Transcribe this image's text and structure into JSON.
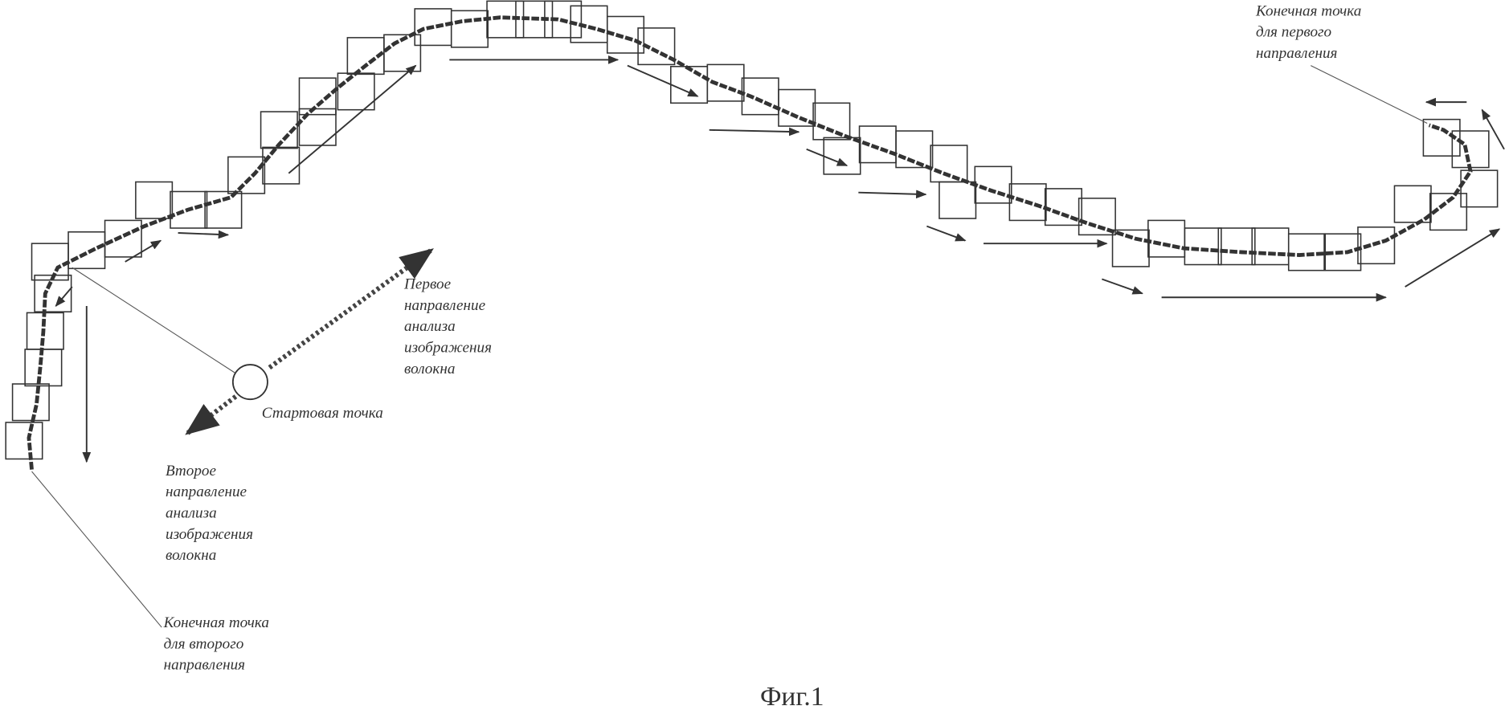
{
  "labels": {
    "end_point_first": {
      "lines": [
        "Конечная точка",
        "для первого",
        "направления"
      ]
    },
    "first_direction": {
      "lines": [
        "Первое",
        "направление",
        "анализа",
        "изображения",
        "волокна"
      ]
    },
    "start_point": {
      "lines": [
        "Стартовая точка"
      ]
    },
    "second_direction": {
      "lines": [
        "Второе",
        "направление",
        "анализа",
        "изображения",
        "волокна"
      ]
    },
    "end_point_second": {
      "lines": [
        "Конечная точка",
        "для второго",
        "направления"
      ]
    }
  },
  "caption": "Фиг.1"
}
